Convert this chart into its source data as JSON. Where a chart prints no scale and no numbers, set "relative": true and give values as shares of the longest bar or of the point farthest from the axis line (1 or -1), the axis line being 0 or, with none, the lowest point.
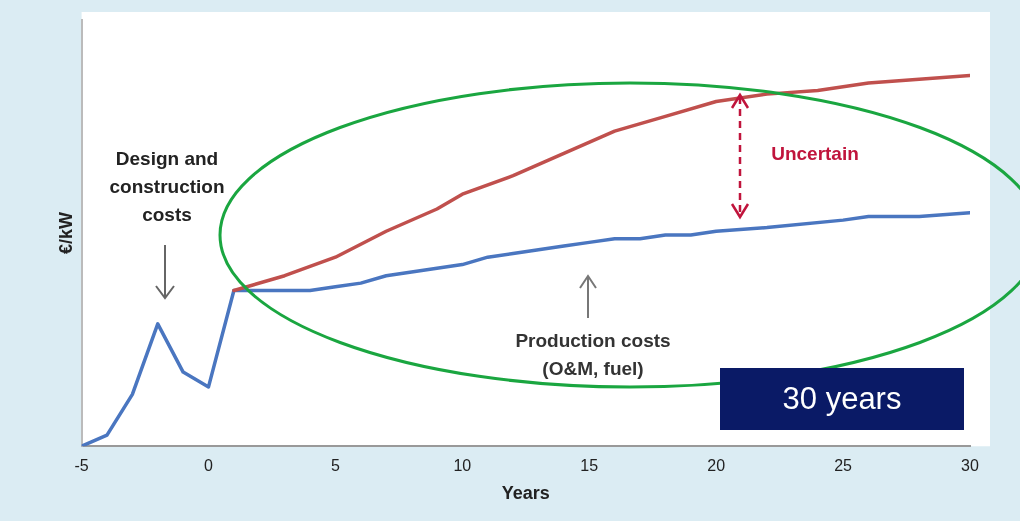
{
  "chart_data": {
    "type": "line",
    "xlabel": "Years",
    "ylabel": "€/kW",
    "relative": true,
    "xlim": [
      -5,
      30
    ],
    "xticks": [
      -5,
      0,
      5,
      10,
      15,
      20,
      25,
      30
    ],
    "grid": false,
    "legend": false,
    "marker": "none",
    "annotations": [
      "Design and construction costs",
      "Production costs (O&M, fuel)",
      "Uncertain",
      "30 years"
    ],
    "series": [
      {
        "color": "#c0504d",
        "x": [
          1,
          3,
          5,
          7,
          9,
          10,
          12,
          14,
          16,
          18,
          20,
          22,
          24,
          26,
          28,
          30
        ],
        "values": [
          0.42,
          0.46,
          0.51,
          0.58,
          0.64,
          0.68,
          0.73,
          0.79,
          0.85,
          0.89,
          0.93,
          0.95,
          0.96,
          0.98,
          0.99,
          1
        ]
      },
      {
        "color": "#4a76c0",
        "x": [
          -5,
          -4,
          -3,
          -2,
          -1,
          0,
          1,
          2,
          3,
          4,
          5,
          6,
          7,
          8,
          9,
          10,
          11,
          12,
          13,
          14,
          15,
          16,
          17,
          18,
          19,
          20,
          22,
          25,
          26,
          28,
          30
        ],
        "values": [
          0,
          0.03,
          0.14,
          0.33,
          0.2,
          0.16,
          0.42,
          0.42,
          0.42,
          0.42,
          0.43,
          0.44,
          0.46,
          0.47,
          0.48,
          0.49,
          0.51,
          0.52,
          0.53,
          0.54,
          0.55,
          0.56,
          0.56,
          0.57,
          0.57,
          0.58,
          0.59,
          0.61,
          0.62,
          0.62,
          0.63
        ]
      }
    ]
  }
}
